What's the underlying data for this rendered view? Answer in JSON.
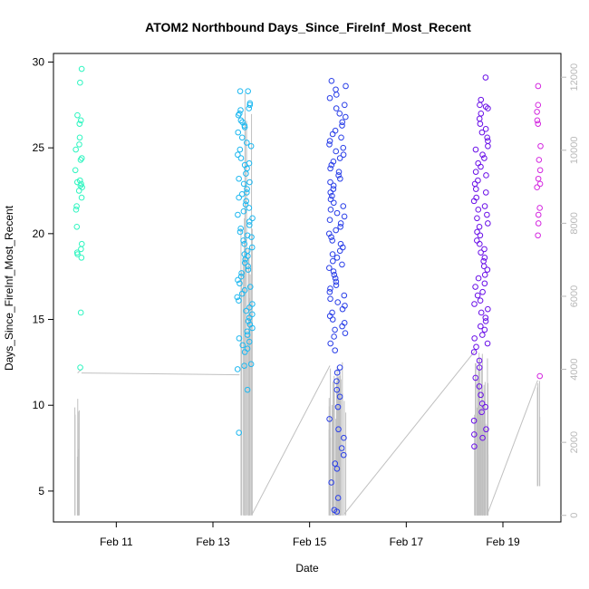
{
  "chart_data": {
    "type": "scatter",
    "title": "ATOM2 Northbound Days_Since_FireInf_Most_Recent",
    "xlabel": "Date",
    "ylabel": "Days_Since_FireInf_Most_Recent",
    "x_ticks": [
      "Feb 11",
      "Feb 13",
      "Feb 15",
      "Feb 17",
      "Feb 19"
    ],
    "x_range_days": [
      9.7,
      20.2
    ],
    "ylim": [
      3.2,
      30.5
    ],
    "y_ticks": [
      5,
      10,
      15,
      20,
      25,
      30
    ],
    "y2_ticks": [
      0,
      2000,
      4000,
      6000,
      8000,
      10000,
      12000
    ],
    "y2lim": [
      -180,
      12650
    ],
    "grid": false,
    "series": [
      {
        "color": "#2ef5c0",
        "x_range": [
          10.15,
          10.3
        ],
        "values": [
          28.8,
          29.6,
          26.9,
          26.6,
          26.4,
          25.6,
          25.2,
          24.9,
          24.4,
          24.3,
          23.7,
          23.1,
          23.0,
          22.9,
          22.8,
          22.7,
          22.5,
          22.1,
          21.6,
          21.4,
          20.4,
          19.4,
          19.1,
          18.9,
          18.8,
          18.6,
          15.4,
          12.2
        ]
      },
      {
        "color": "#1eb8f0",
        "x_range": [
          13.5,
          13.82
        ],
        "values": [
          28.3,
          28.3,
          27.6,
          27.5,
          27.3,
          27.2,
          27.0,
          26.9,
          26.6,
          26.5,
          26.3,
          26.2,
          25.9,
          25.6,
          25.3,
          25.1,
          24.9,
          24.6,
          24.4,
          24.1,
          24.0,
          23.8,
          23.5,
          23.2,
          23.0,
          22.9,
          22.6,
          22.4,
          22.3,
          22.1,
          21.9,
          21.7,
          21.5,
          21.3,
          21.1,
          20.9,
          20.7,
          20.5,
          20.3,
          20.1,
          19.9,
          19.8,
          19.6,
          19.4,
          19.2,
          19.0,
          18.8,
          18.7,
          18.5,
          18.3,
          18.1,
          17.9,
          17.7,
          17.5,
          17.3,
          17.1,
          16.9,
          16.7,
          16.5,
          16.3,
          16.1,
          15.9,
          15.7,
          15.5,
          15.3,
          15.1,
          14.9,
          14.7,
          14.5,
          14.3,
          14.1,
          13.9,
          13.7,
          13.5,
          13.3,
          13.1,
          12.4,
          12.3,
          12.1,
          10.9,
          8.4
        ]
      },
      {
        "color": "#2a3fe8",
        "x_range": [
          15.4,
          15.75
        ],
        "values": [
          28.9,
          28.6,
          28.4,
          28.1,
          27.9,
          27.5,
          27.3,
          27.0,
          26.8,
          26.5,
          26.3,
          26.0,
          25.8,
          25.6,
          25.4,
          25.2,
          25.0,
          24.8,
          24.6,
          24.4,
          24.2,
          24.0,
          23.8,
          23.6,
          23.4,
          23.2,
          23.0,
          22.8,
          22.6,
          22.4,
          22.2,
          22.0,
          21.8,
          21.6,
          21.4,
          21.2,
          21.0,
          20.8,
          20.6,
          20.4,
          20.2,
          20.0,
          19.8,
          19.6,
          19.4,
          19.2,
          19.0,
          18.8,
          18.6,
          18.4,
          18.2,
          18.0,
          17.8,
          17.6,
          17.4,
          17.2,
          17.0,
          16.8,
          16.6,
          16.4,
          16.2,
          16.0,
          15.8,
          15.6,
          15.4,
          15.2,
          15.0,
          14.8,
          14.6,
          14.4,
          14.2,
          14.0,
          13.6,
          13.2,
          12.2,
          11.9,
          11.4,
          10.9,
          10.5,
          9.9,
          9.2,
          8.6,
          8.1,
          7.5,
          7.1,
          6.6,
          6.3,
          5.5,
          4.6,
          3.9,
          3.8
        ]
      },
      {
        "color": "#6a10e8",
        "x_range": [
          18.4,
          18.7
        ],
        "values": [
          29.1,
          27.8,
          27.5,
          27.4,
          27.3,
          27.0,
          26.7,
          26.4,
          26.1,
          25.9,
          25.6,
          25.4,
          25.1,
          24.9,
          24.6,
          24.4,
          24.1,
          23.9,
          23.6,
          23.4,
          23.1,
          22.9,
          22.6,
          22.4,
          22.1,
          21.9,
          21.6,
          21.4,
          21.1,
          20.9,
          20.6,
          20.4,
          20.1,
          19.9,
          19.6,
          19.4,
          19.1,
          18.9,
          18.6,
          18.4,
          18.1,
          17.9,
          17.6,
          17.4,
          17.1,
          16.9,
          16.6,
          16.4,
          16.1,
          15.9,
          15.6,
          15.4,
          15.1,
          14.9,
          14.6,
          14.4,
          14.1,
          13.9,
          13.6,
          13.4,
          13.1,
          12.6,
          12.2,
          11.6,
          11.1,
          10.6,
          10.1,
          9.9,
          9.6,
          9.1,
          8.6,
          8.3,
          8.1,
          7.6
        ]
      },
      {
        "color": "#d428e0",
        "x_range": [
          19.7,
          19.78
        ],
        "values": [
          28.6,
          27.5,
          27.1,
          26.6,
          26.4,
          25.1,
          24.3,
          23.7,
          23.2,
          22.9,
          22.7,
          21.5,
          21.1,
          20.6,
          19.9,
          11.7
        ]
      }
    ],
    "background_line": {
      "color": "#c0c0c0",
      "axis": "right",
      "segments": [
        {
          "x": [
            10.2,
            10.28
          ],
          "y": [
            3900,
            4000
          ]
        },
        {
          "x": [
            10.28,
            13.55
          ],
          "y": [
            3900,
            3850
          ]
        },
        {
          "x": [
            13.8,
            15.42
          ],
          "y": [
            5,
            4100
          ]
        },
        {
          "x": [
            15.72,
            18.42
          ],
          "y": [
            40,
            4500
          ]
        },
        {
          "x": [
            18.68,
            19.72
          ],
          "y": [
            40,
            3700
          ]
        }
      ],
      "spike_clusters": [
        {
          "x_range": [
            10.12,
            10.25
          ],
          "low": 0,
          "high": 3200,
          "count": 10
        },
        {
          "x_range": [
            13.55,
            13.82
          ],
          "low": 0,
          "high": 12000,
          "count": 20
        },
        {
          "x_range": [
            15.4,
            15.75
          ],
          "low": 0,
          "high": 4200,
          "count": 40
        },
        {
          "x_range": [
            18.4,
            18.7
          ],
          "low": 0,
          "high": 4500,
          "count": 40
        },
        {
          "x_range": [
            19.7,
            19.78
          ],
          "low": 800,
          "high": 3700,
          "count": 4
        }
      ]
    }
  }
}
